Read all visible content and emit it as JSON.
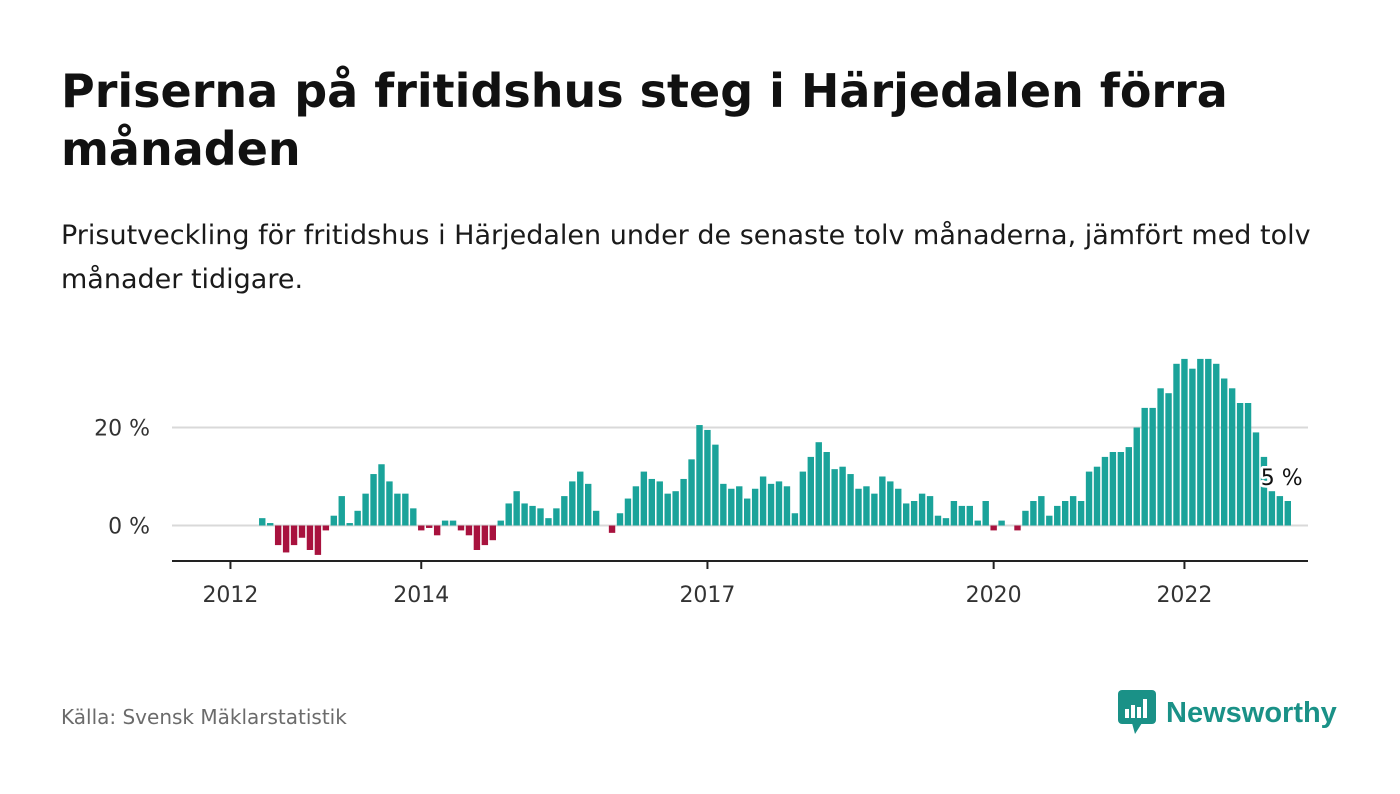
{
  "header": {
    "title": "Priserna på fritidshus steg i Härjedalen förra månaden",
    "subtitle": "Prisutveckling för fritidshus i Härjedalen under de senaste tolv månaderna, jämfört med tolv månader tidigare."
  },
  "footer": {
    "source": "Källa: Svensk Mäklarstatistik",
    "brand": "Newsworthy",
    "brand_icon": "newsworthy-logo-icon"
  },
  "colors": {
    "positive": "#1aa39a",
    "negative": "#a8123e",
    "grid": "#d9d9d9",
    "axis": "#222222",
    "brand": "#1a9187"
  },
  "chart_data": {
    "type": "bar",
    "title": "",
    "xlabel": "",
    "ylabel": "",
    "y_unit": "%",
    "ylim": [
      -7,
      36
    ],
    "yticks": [
      {
        "value": 0,
        "label": "0 %"
      },
      {
        "value": 20,
        "label": "20 %"
      }
    ],
    "x_start": "2011-12",
    "xticks": [
      {
        "date": "2012-01",
        "label": "2012"
      },
      {
        "date": "2014-01",
        "label": "2014"
      },
      {
        "date": "2017-01",
        "label": "2017"
      },
      {
        "date": "2020-01",
        "label": "2020"
      },
      {
        "date": "2022-01",
        "label": "2022"
      }
    ],
    "grid": true,
    "last_value_label": "5 %",
    "series": [
      {
        "values": [
          0,
          0,
          0,
          0,
          0,
          1.5,
          0.5,
          -4,
          -5.5,
          -4,
          -2.5,
          -5,
          -6,
          -1,
          2,
          6,
          0.5,
          3,
          6.5,
          10.5,
          12.5,
          9,
          6.5,
          6.5,
          3.5,
          -1,
          -0.5,
          -2,
          1,
          1,
          -1,
          -2,
          -5,
          -4,
          -3,
          1,
          4.5,
          7,
          4.5,
          4,
          3.5,
          1.5,
          3.5,
          6,
          9,
          11,
          8.5,
          3,
          0,
          -1.5,
          2.5,
          5.5,
          8,
          11,
          9.5,
          9,
          6.5,
          7,
          9.5,
          13.5,
          20.5,
          19.5,
          16.5,
          8.5,
          7.5,
          8,
          5.5,
          7.5,
          10,
          8.5,
          9,
          8,
          2.5,
          11,
          14,
          17,
          15,
          11.5,
          12,
          10.5,
          7.5,
          8,
          6.5,
          10,
          9,
          7.5,
          4.5,
          5,
          6.5,
          6,
          2,
          1.5,
          5,
          4,
          4,
          1,
          5,
          -1,
          1,
          0,
          -1,
          3,
          5,
          6,
          2,
          4,
          5,
          6,
          5,
          11,
          12,
          14,
          15,
          15,
          16,
          20,
          24,
          24,
          28,
          27,
          33,
          34,
          32,
          34,
          34,
          33,
          30,
          28,
          25,
          25,
          19,
          14,
          7,
          6,
          5
        ]
      }
    ]
  }
}
